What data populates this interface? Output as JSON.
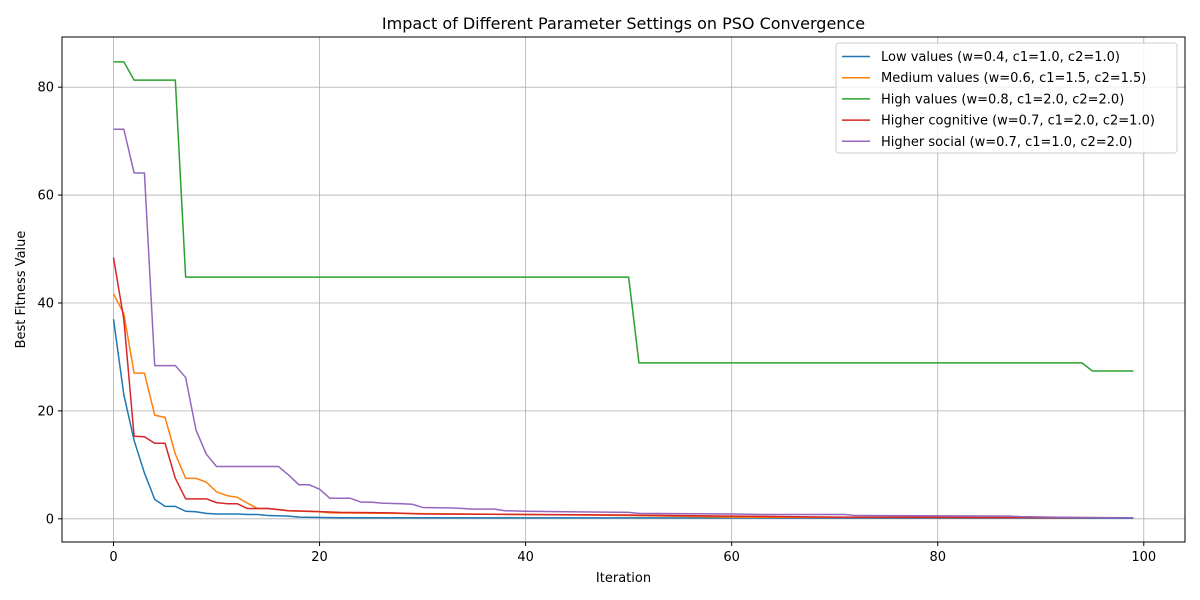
{
  "chart_data": {
    "type": "line",
    "title": "Impact of Different Parameter Settings on PSO Convergence",
    "xlabel": "Iteration",
    "ylabel": "Best Fitness Value",
    "xlim": [
      -5,
      104
    ],
    "ylim": [
      -4.3,
      89.3
    ],
    "xticks": [
      0,
      20,
      40,
      60,
      80,
      100
    ],
    "yticks": [
      0,
      20,
      40,
      60,
      80
    ],
    "grid": true,
    "legend_position": "top-right",
    "series": [
      {
        "name": "Low values (w=0.4, c1=1.0, c2=1.0)",
        "color": "#1f77b4",
        "points": [
          [
            0,
            37.0
          ],
          [
            1,
            23.0
          ],
          [
            2,
            14.5
          ],
          [
            3,
            8.5
          ],
          [
            4,
            3.6
          ],
          [
            5,
            2.3
          ],
          [
            6,
            2.3
          ],
          [
            7,
            1.4
          ],
          [
            8,
            1.3
          ],
          [
            9,
            1.0
          ],
          [
            10,
            0.9
          ],
          [
            12,
            0.9
          ],
          [
            13,
            0.8
          ],
          [
            14,
            0.8
          ],
          [
            15,
            0.6
          ],
          [
            17,
            0.5
          ],
          [
            18,
            0.3
          ],
          [
            22,
            0.2
          ],
          [
            99,
            0.1
          ]
        ]
      },
      {
        "name": "Medium values (w=0.6, c1=1.5, c2=1.5)",
        "color": "#ff7f0e",
        "points": [
          [
            0,
            41.7
          ],
          [
            1,
            38.0
          ],
          [
            2,
            27.0
          ],
          [
            3,
            27.0
          ],
          [
            4,
            19.2
          ],
          [
            5,
            18.8
          ],
          [
            6,
            12.0
          ],
          [
            7,
            7.5
          ],
          [
            8,
            7.5
          ],
          [
            9,
            6.8
          ],
          [
            10,
            5.0
          ],
          [
            11,
            4.3
          ],
          [
            12,
            4.0
          ],
          [
            13,
            2.9
          ],
          [
            14,
            1.9
          ],
          [
            15,
            1.9
          ],
          [
            16,
            1.7
          ],
          [
            17,
            1.5
          ],
          [
            20,
            1.3
          ],
          [
            21,
            1.1
          ],
          [
            40,
            0.8
          ],
          [
            50,
            0.6
          ],
          [
            60,
            0.3
          ],
          [
            99,
            0.2
          ]
        ]
      },
      {
        "name": "High values (w=0.8, c1=2.0, c2=2.0)",
        "color": "#2ca02c",
        "points": [
          [
            0,
            84.7
          ],
          [
            1,
            84.7
          ],
          [
            2,
            81.3
          ],
          [
            6,
            81.3
          ],
          [
            7,
            44.8
          ],
          [
            50,
            44.8
          ],
          [
            51,
            28.9
          ],
          [
            94,
            28.9
          ],
          [
            95,
            27.4
          ],
          [
            99,
            27.4
          ]
        ]
      },
      {
        "name": "Higher cognitive (w=0.7, c1=2.0, c2=1.0)",
        "color": "#d62728",
        "points": [
          [
            0,
            48.4
          ],
          [
            1,
            37.0
          ],
          [
            2,
            15.3
          ],
          [
            3,
            15.2
          ],
          [
            4,
            14.0
          ],
          [
            5,
            14.0
          ],
          [
            6,
            7.5
          ],
          [
            7,
            3.7
          ],
          [
            9,
            3.7
          ],
          [
            10,
            3.0
          ],
          [
            11,
            2.8
          ],
          [
            12,
            2.8
          ],
          [
            13,
            1.9
          ],
          [
            14,
            1.9
          ],
          [
            15,
            1.9
          ],
          [
            16,
            1.7
          ],
          [
            17,
            1.5
          ],
          [
            19,
            1.4
          ],
          [
            22,
            1.2
          ],
          [
            27,
            1.1
          ],
          [
            30,
            0.9
          ],
          [
            40,
            0.8
          ],
          [
            50,
            0.7
          ],
          [
            60,
            0.5
          ],
          [
            70,
            0.3
          ],
          [
            99,
            0.2
          ]
        ]
      },
      {
        "name": "Higher social (w=0.7, c1=1.0, c2=2.0)",
        "color": "#9467bd",
        "points": [
          [
            0,
            72.2
          ],
          [
            1,
            72.2
          ],
          [
            2,
            64.1
          ],
          [
            3,
            64.1
          ],
          [
            4,
            28.4
          ],
          [
            6,
            28.4
          ],
          [
            7,
            26.2
          ],
          [
            8,
            16.5
          ],
          [
            9,
            12.0
          ],
          [
            10,
            9.7
          ],
          [
            16,
            9.7
          ],
          [
            17,
            8.1
          ],
          [
            18,
            6.3
          ],
          [
            19,
            6.3
          ],
          [
            20,
            5.5
          ],
          [
            21,
            3.8
          ],
          [
            23,
            3.8
          ],
          [
            24,
            3.1
          ],
          [
            25,
            3.1
          ],
          [
            26,
            2.9
          ],
          [
            28,
            2.8
          ],
          [
            29,
            2.7
          ],
          [
            30,
            2.1
          ],
          [
            33,
            2.0
          ],
          [
            35,
            1.8
          ],
          [
            37,
            1.8
          ],
          [
            38,
            1.5
          ],
          [
            40,
            1.4
          ],
          [
            44,
            1.3
          ],
          [
            50,
            1.2
          ],
          [
            51,
            1.0
          ],
          [
            60,
            0.9
          ],
          [
            63,
            0.8
          ],
          [
            71,
            0.8
          ],
          [
            72,
            0.6
          ],
          [
            87,
            0.5
          ],
          [
            88,
            0.4
          ],
          [
            91,
            0.3
          ],
          [
            96,
            0.2
          ],
          [
            99,
            0.2
          ]
        ]
      }
    ]
  }
}
